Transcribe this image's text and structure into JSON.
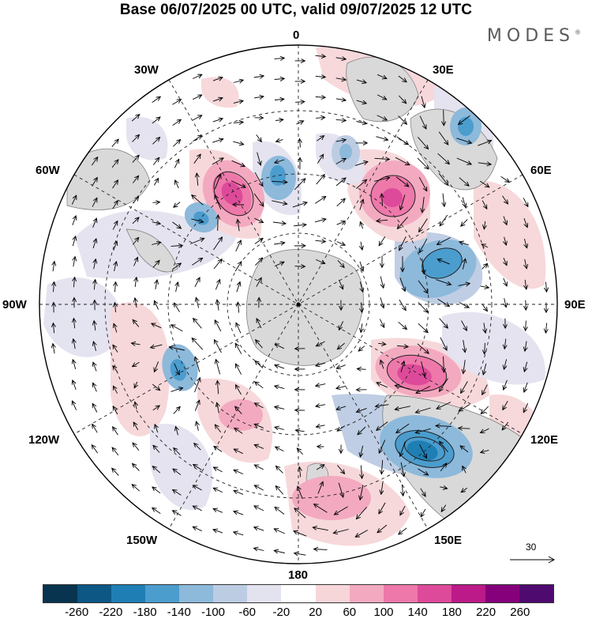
{
  "title": "Base 06/07/2025 00 UTC, valid 09/07/2025 12 UTC",
  "brand": "MODES",
  "brand_mark": "®",
  "longitude_labels": {
    "top": "0",
    "bottom": "180",
    "left": "90W",
    "right": "90E",
    "nw30": "30W",
    "nw60": "60W",
    "ne30": "30E",
    "ne60": "60E",
    "sw120": "120W",
    "sw150": "150W",
    "se120": "120E",
    "se150": "150E"
  },
  "reference_vector": {
    "value": "30"
  },
  "colorbar": {
    "ticks": [
      "-260",
      "-220",
      "-180",
      "-140",
      "-100",
      "-60",
      "-20",
      "20",
      "60",
      "100",
      "140",
      "180",
      "220",
      "260"
    ],
    "colors": [
      "#08344f",
      "#0d5785",
      "#1f7fb4",
      "#4b9dce",
      "#8db9db",
      "#bccce3",
      "#e3e2ef",
      "#ffffff",
      "#f7d6d9",
      "#f3aac0",
      "#ee78aa",
      "#de4a9a",
      "#bb1a88",
      "#85007a",
      "#4f0a70"
    ]
  },
  "map_colors": {
    "land": "#d9d9d9",
    "ocean": "#ffffff",
    "pos_weak": "#f7d6d9",
    "pos_mid": "#f3aac0",
    "pos_strong": "#ee78aa",
    "pos_max": "#de4a9a",
    "neg_weak": "#e3e2ef",
    "neg_mid": "#bccce3",
    "neg_strong": "#8db9db",
    "neg_max": "#4b9dce",
    "neg_core": "#1f7fb4"
  },
  "icons": {
    "wind_vector": "arrow-icon"
  }
}
